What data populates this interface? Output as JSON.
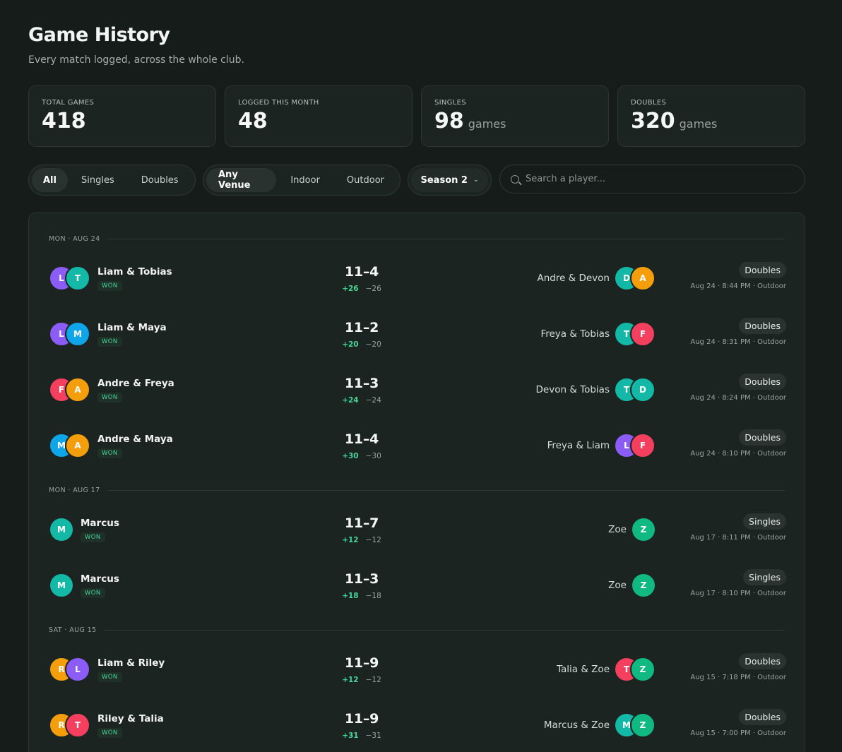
{
  "header": {
    "title": "Game History",
    "subtitle": "Every match logged, across the whole club."
  },
  "stats": [
    {
      "label": "TOTAL GAMES",
      "value": "418",
      "unit": ""
    },
    {
      "label": "LOGGED THIS MONTH",
      "value": "48",
      "unit": ""
    },
    {
      "label": "SINGLES",
      "value": "98",
      "unit": "games"
    },
    {
      "label": "DOUBLES",
      "value": "320",
      "unit": "games"
    }
  ],
  "filters": {
    "format": {
      "options": [
        "All",
        "Singles",
        "Doubles"
      ],
      "selected": "All"
    },
    "venue": {
      "options": [
        "Any Venue",
        "Indoor",
        "Outdoor"
      ],
      "selected": "Any Venue"
    },
    "season": "Season 2",
    "search_placeholder": "Search a player..."
  },
  "colors": {
    "purple": "#8b5cf6",
    "teal": "#14b8a6",
    "blue": "#0ea5e9",
    "pink": "#f43f5e",
    "orange": "#f59e0b",
    "green": "#10b981",
    "accent_win": "#47d69a"
  },
  "days": [
    {
      "label": "MON · AUG 24",
      "games": [
        {
          "winners": "Liam & Tobias",
          "win_avatars": [
            {
              "letter": "L",
              "color": "purple"
            },
            {
              "letter": "T",
              "color": "teal"
            }
          ],
          "result": "WON",
          "score": "11–4",
          "plus": "+26",
          "minus": "−26",
          "losers": "Andre & Devon",
          "lose_avatars": [
            {
              "letter": "D",
              "color": "teal"
            },
            {
              "letter": "A",
              "color": "orange"
            }
          ],
          "type": "Doubles",
          "meta": "Aug 24 · 8:44 PM · Outdoor"
        },
        {
          "winners": "Liam & Maya",
          "win_avatars": [
            {
              "letter": "L",
              "color": "purple"
            },
            {
              "letter": "M",
              "color": "blue"
            }
          ],
          "result": "WON",
          "score": "11–2",
          "plus": "+20",
          "minus": "−20",
          "losers": "Freya & Tobias",
          "lose_avatars": [
            {
              "letter": "T",
              "color": "teal"
            },
            {
              "letter": "F",
              "color": "pink"
            }
          ],
          "type": "Doubles",
          "meta": "Aug 24 · 8:31 PM · Outdoor"
        },
        {
          "winners": "Andre & Freya",
          "win_avatars": [
            {
              "letter": "F",
              "color": "pink"
            },
            {
              "letter": "A",
              "color": "orange"
            }
          ],
          "result": "WON",
          "score": "11–3",
          "plus": "+24",
          "minus": "−24",
          "losers": "Devon & Tobias",
          "lose_avatars": [
            {
              "letter": "T",
              "color": "teal"
            },
            {
              "letter": "D",
              "color": "teal"
            }
          ],
          "type": "Doubles",
          "meta": "Aug 24 · 8:24 PM · Outdoor"
        },
        {
          "winners": "Andre & Maya",
          "win_avatars": [
            {
              "letter": "M",
              "color": "blue"
            },
            {
              "letter": "A",
              "color": "orange"
            }
          ],
          "result": "WON",
          "score": "11–4",
          "plus": "+30",
          "minus": "−30",
          "losers": "Freya & Liam",
          "lose_avatars": [
            {
              "letter": "L",
              "color": "purple"
            },
            {
              "letter": "F",
              "color": "pink"
            }
          ],
          "type": "Doubles",
          "meta": "Aug 24 · 8:10 PM · Outdoor"
        }
      ]
    },
    {
      "label": "MON · AUG 17",
      "games": [
        {
          "winners": "Marcus",
          "win_avatars": [
            {
              "letter": "M",
              "color": "teal"
            }
          ],
          "result": "WON",
          "score": "11–7",
          "plus": "+12",
          "minus": "−12",
          "losers": "Zoe",
          "lose_avatars": [
            {
              "letter": "Z",
              "color": "green"
            }
          ],
          "type": "Singles",
          "meta": "Aug 17 · 8:11 PM · Outdoor"
        },
        {
          "winners": "Marcus",
          "win_avatars": [
            {
              "letter": "M",
              "color": "teal"
            }
          ],
          "result": "WON",
          "score": "11–3",
          "plus": "+18",
          "minus": "−18",
          "losers": "Zoe",
          "lose_avatars": [
            {
              "letter": "Z",
              "color": "green"
            }
          ],
          "type": "Singles",
          "meta": "Aug 17 · 8:10 PM · Outdoor"
        }
      ]
    },
    {
      "label": "SAT · AUG 15",
      "games": [
        {
          "winners": "Liam & Riley",
          "win_avatars": [
            {
              "letter": "R",
              "color": "orange"
            },
            {
              "letter": "L",
              "color": "purple"
            }
          ],
          "result": "WON",
          "score": "11–9",
          "plus": "+12",
          "minus": "−12",
          "losers": "Talia & Zoe",
          "lose_avatars": [
            {
              "letter": "T",
              "color": "pink"
            },
            {
              "letter": "Z",
              "color": "green"
            }
          ],
          "type": "Doubles",
          "meta": "Aug 15 · 7:18 PM · Outdoor"
        },
        {
          "winners": "Riley & Talia",
          "win_avatars": [
            {
              "letter": "R",
              "color": "orange"
            },
            {
              "letter": "T",
              "color": "pink"
            }
          ],
          "result": "WON",
          "score": "11–9",
          "plus": "+31",
          "minus": "−31",
          "losers": "Marcus & Zoe",
          "lose_avatars": [
            {
              "letter": "M",
              "color": "teal"
            },
            {
              "letter": "Z",
              "color": "green"
            }
          ],
          "type": "Doubles",
          "meta": "Aug 15 · 7:00 PM · Outdoor"
        }
      ]
    }
  ]
}
